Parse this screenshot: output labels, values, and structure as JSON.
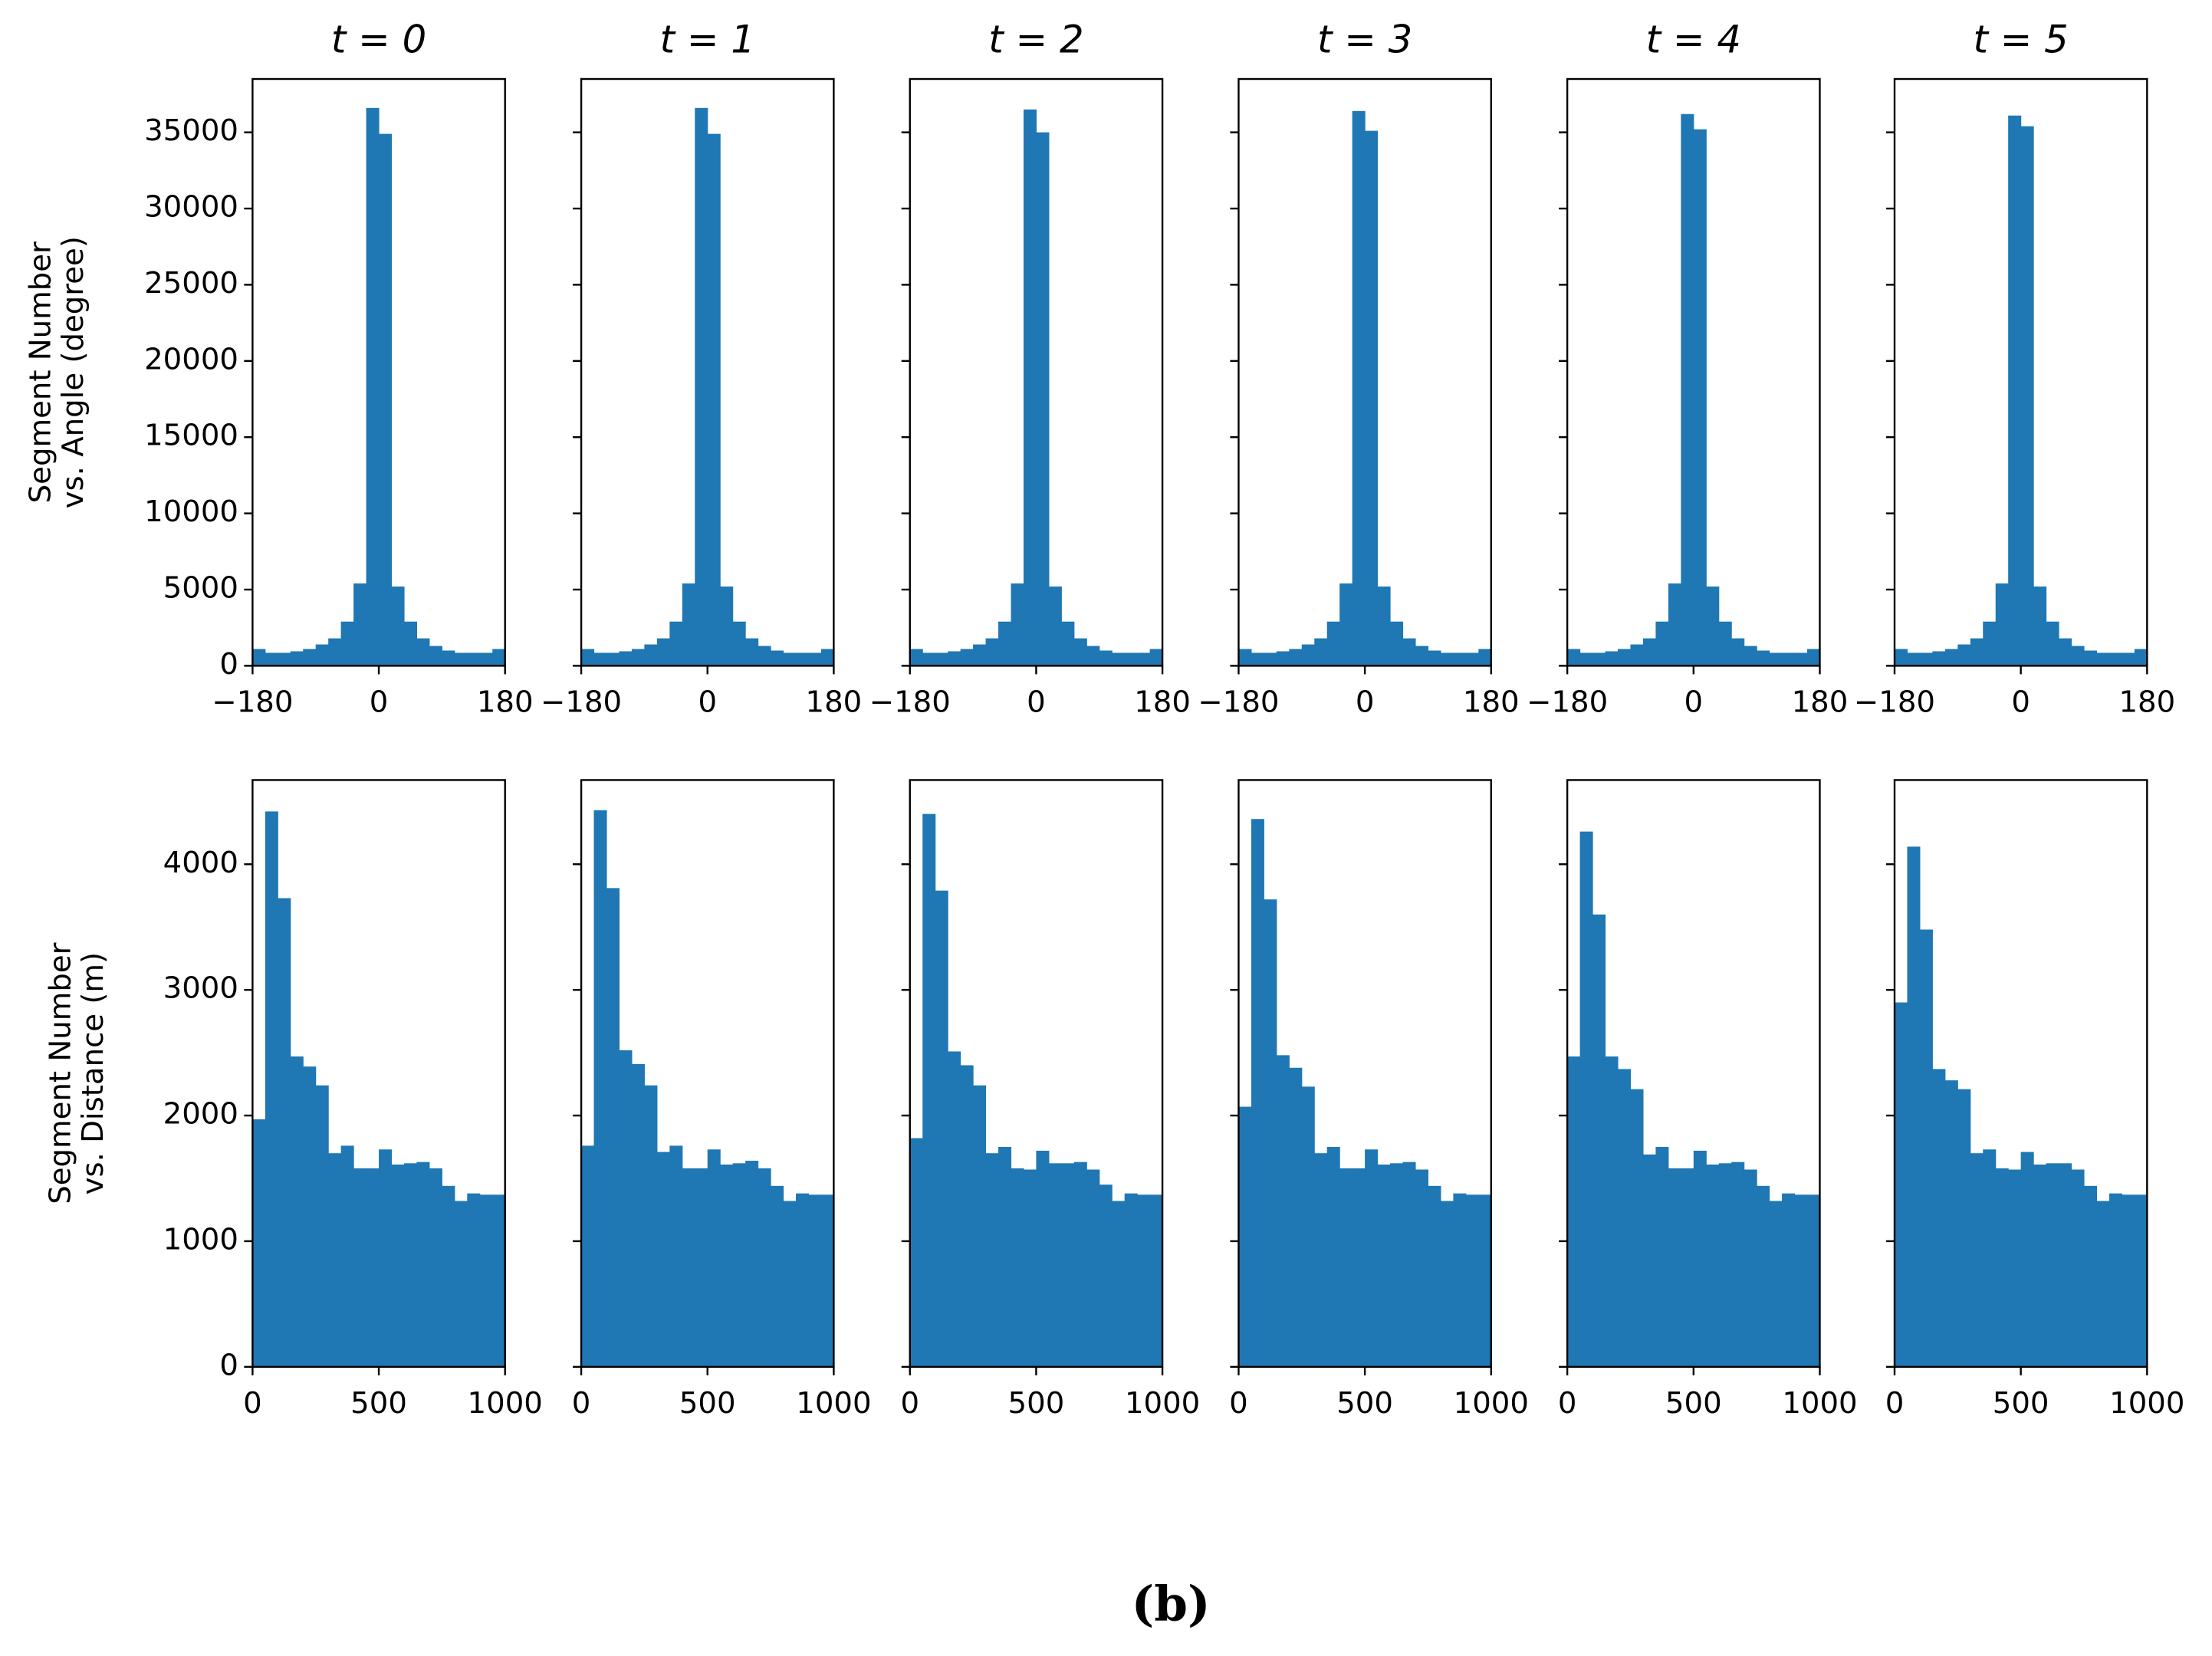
{
  "caption": "(b)",
  "chart_data": [
    {
      "type": "histogram",
      "title": "t = 0",
      "ylabel": [
        "Segment Number",
        "vs. Angle (degree)"
      ],
      "color": "#1f77b4",
      "bins": [
        -180,
        -162,
        -144,
        -126,
        -108,
        -90,
        -72,
        -54,
        -36,
        -18,
        0,
        18,
        36,
        54,
        72,
        90,
        108,
        126,
        144,
        162,
        180
      ],
      "values": [
        1100,
        850,
        850,
        950,
        1100,
        1400,
        1800,
        2900,
        5400,
        36600,
        34900,
        5200,
        2900,
        1800,
        1300,
        1000,
        850,
        850,
        850,
        1100
      ],
      "xlim": [
        -180,
        180
      ],
      "xticks": [
        {
          "value": -180,
          "label": "−180"
        },
        0,
        180
      ],
      "ylim": [
        0,
        38500
      ],
      "yticks": [
        0,
        5000,
        10000,
        15000,
        20000,
        25000,
        30000,
        35000
      ]
    },
    {
      "type": "histogram",
      "title": "t = 1",
      "color": "#1f77b4",
      "ytick_labels": false,
      "bins": [
        -180,
        -162,
        -144,
        -126,
        -108,
        -90,
        -72,
        -54,
        -36,
        -18,
        0,
        18,
        36,
        54,
        72,
        90,
        108,
        126,
        144,
        162,
        180
      ],
      "values": [
        1100,
        850,
        850,
        950,
        1100,
        1400,
        1800,
        2900,
        5400,
        36600,
        34900,
        5200,
        2900,
        1800,
        1300,
        1000,
        850,
        850,
        850,
        1100
      ],
      "xlim": [
        -180,
        180
      ],
      "xticks": [
        {
          "value": -180,
          "label": "−180"
        },
        0,
        180
      ],
      "ylim": [
        0,
        38500
      ],
      "yticks": [
        0,
        5000,
        10000,
        15000,
        20000,
        25000,
        30000,
        35000
      ]
    },
    {
      "type": "histogram",
      "title": "t = 2",
      "color": "#1f77b4",
      "ytick_labels": false,
      "bins": [
        -180,
        -162,
        -144,
        -126,
        -108,
        -90,
        -72,
        -54,
        -36,
        -18,
        0,
        18,
        36,
        54,
        72,
        90,
        108,
        126,
        144,
        162,
        180
      ],
      "values": [
        1100,
        850,
        850,
        950,
        1100,
        1400,
        1800,
        2900,
        5400,
        36500,
        35000,
        5200,
        2900,
        1800,
        1300,
        1000,
        850,
        850,
        850,
        1100
      ],
      "xlim": [
        -180,
        180
      ],
      "xticks": [
        {
          "value": -180,
          "label": "−180"
        },
        0,
        180
      ],
      "ylim": [
        0,
        38500
      ],
      "yticks": [
        0,
        5000,
        10000,
        15000,
        20000,
        25000,
        30000,
        35000
      ]
    },
    {
      "type": "histogram",
      "title": "t = 3",
      "color": "#1f77b4",
      "ytick_labels": false,
      "bins": [
        -180,
        -162,
        -144,
        -126,
        -108,
        -90,
        -72,
        -54,
        -36,
        -18,
        0,
        18,
        36,
        54,
        72,
        90,
        108,
        126,
        144,
        162,
        180
      ],
      "values": [
        1100,
        850,
        850,
        950,
        1100,
        1400,
        1800,
        2900,
        5400,
        36400,
        35100,
        5200,
        2900,
        1800,
        1300,
        1000,
        850,
        850,
        850,
        1100
      ],
      "xlim": [
        -180,
        180
      ],
      "xticks": [
        {
          "value": -180,
          "label": "−180"
        },
        0,
        180
      ],
      "ylim": [
        0,
        38500
      ],
      "yticks": [
        0,
        5000,
        10000,
        15000,
        20000,
        25000,
        30000,
        35000
      ]
    },
    {
      "type": "histogram",
      "title": "t = 4",
      "color": "#1f77b4",
      "ytick_labels": false,
      "bins": [
        -180,
        -162,
        -144,
        -126,
        -108,
        -90,
        -72,
        -54,
        -36,
        -18,
        0,
        18,
        36,
        54,
        72,
        90,
        108,
        126,
        144,
        162,
        180
      ],
      "values": [
        1100,
        850,
        850,
        950,
        1100,
        1400,
        1800,
        2900,
        5400,
        36200,
        35200,
        5200,
        2900,
        1800,
        1300,
        1000,
        850,
        850,
        850,
        1100
      ],
      "xlim": [
        -180,
        180
      ],
      "xticks": [
        {
          "value": -180,
          "label": "−180"
        },
        0,
        180
      ],
      "ylim": [
        0,
        38500
      ],
      "yticks": [
        0,
        5000,
        10000,
        15000,
        20000,
        25000,
        30000,
        35000
      ]
    },
    {
      "type": "histogram",
      "title": "t = 5",
      "color": "#1f77b4",
      "ytick_labels": false,
      "bins": [
        -180,
        -162,
        -144,
        -126,
        -108,
        -90,
        -72,
        -54,
        -36,
        -18,
        0,
        18,
        36,
        54,
        72,
        90,
        108,
        126,
        144,
        162,
        180
      ],
      "values": [
        1100,
        850,
        850,
        950,
        1100,
        1400,
        1800,
        2900,
        5400,
        36100,
        35400,
        5200,
        2900,
        1800,
        1300,
        1000,
        850,
        850,
        850,
        1100
      ],
      "xlim": [
        -180,
        180
      ],
      "xticks": [
        {
          "value": -180,
          "label": "−180"
        },
        0,
        180
      ],
      "ylim": [
        0,
        38500
      ],
      "yticks": [
        0,
        5000,
        10000,
        15000,
        20000,
        25000,
        30000,
        35000
      ]
    },
    {
      "type": "histogram",
      "ylabel": [
        "Segment Number",
        "vs. Distance (m)"
      ],
      "color": "#1f77b4",
      "bins": [
        0,
        50,
        100,
        150,
        200,
        250,
        300,
        350,
        400,
        450,
        500,
        550,
        600,
        650,
        700,
        750,
        800,
        850,
        900,
        950,
        1000
      ],
      "values": [
        1970,
        4420,
        3730,
        2470,
        2390,
        2240,
        1700,
        1760,
        1580,
        1580,
        1730,
        1610,
        1620,
        1630,
        1580,
        1440,
        1320,
        1380,
        1370,
        1370
      ],
      "xlim": [
        0,
        1000
      ],
      "xticks": [
        0,
        500,
        1000
      ],
      "ylim": [
        0,
        4670
      ],
      "yticks": [
        0,
        1000,
        2000,
        3000,
        4000
      ]
    },
    {
      "type": "histogram",
      "color": "#1f77b4",
      "ytick_labels": false,
      "bins": [
        0,
        50,
        100,
        150,
        200,
        250,
        300,
        350,
        400,
        450,
        500,
        550,
        600,
        650,
        700,
        750,
        800,
        850,
        900,
        950,
        1000
      ],
      "values": [
        1760,
        4430,
        3810,
        2520,
        2410,
        2240,
        1710,
        1760,
        1580,
        1580,
        1730,
        1610,
        1620,
        1640,
        1580,
        1440,
        1320,
        1380,
        1370,
        1370
      ],
      "xlim": [
        0,
        1000
      ],
      "xticks": [
        0,
        500,
        1000
      ],
      "ylim": [
        0,
        4670
      ],
      "yticks": [
        0,
        1000,
        2000,
        3000,
        4000
      ]
    },
    {
      "type": "histogram",
      "color": "#1f77b4",
      "ytick_labels": false,
      "bins": [
        0,
        50,
        100,
        150,
        200,
        250,
        300,
        350,
        400,
        450,
        500,
        550,
        600,
        650,
        700,
        750,
        800,
        850,
        900,
        950,
        1000
      ],
      "values": [
        1820,
        4400,
        3790,
        2510,
        2400,
        2240,
        1700,
        1750,
        1580,
        1570,
        1720,
        1620,
        1620,
        1630,
        1570,
        1450,
        1320,
        1380,
        1370,
        1370
      ],
      "xlim": [
        0,
        1000
      ],
      "xticks": [
        0,
        500,
        1000
      ],
      "ylim": [
        0,
        4670
      ],
      "yticks": [
        0,
        1000,
        2000,
        3000,
        4000
      ]
    },
    {
      "type": "histogram",
      "color": "#1f77b4",
      "ytick_labels": false,
      "bins": [
        0,
        50,
        100,
        150,
        200,
        250,
        300,
        350,
        400,
        450,
        500,
        550,
        600,
        650,
        700,
        750,
        800,
        850,
        900,
        950,
        1000
      ],
      "values": [
        2070,
        4360,
        3720,
        2480,
        2380,
        2230,
        1700,
        1750,
        1580,
        1580,
        1730,
        1610,
        1620,
        1630,
        1570,
        1440,
        1320,
        1380,
        1370,
        1370
      ],
      "xlim": [
        0,
        1000
      ],
      "xticks": [
        0,
        500,
        1000
      ],
      "ylim": [
        0,
        4670
      ],
      "yticks": [
        0,
        1000,
        2000,
        3000,
        4000
      ]
    },
    {
      "type": "histogram",
      "color": "#1f77b4",
      "ytick_labels": false,
      "bins": [
        0,
        50,
        100,
        150,
        200,
        250,
        300,
        350,
        400,
        450,
        500,
        550,
        600,
        650,
        700,
        750,
        800,
        850,
        900,
        950,
        1000
      ],
      "values": [
        2470,
        4260,
        3600,
        2470,
        2370,
        2210,
        1690,
        1750,
        1580,
        1580,
        1720,
        1610,
        1620,
        1630,
        1570,
        1440,
        1320,
        1380,
        1370,
        1370
      ],
      "xlim": [
        0,
        1000
      ],
      "xticks": [
        0,
        500,
        1000
      ],
      "ylim": [
        0,
        4670
      ],
      "yticks": [
        0,
        1000,
        2000,
        3000,
        4000
      ]
    },
    {
      "type": "histogram",
      "color": "#1f77b4",
      "ytick_labels": false,
      "bins": [
        0,
        50,
        100,
        150,
        200,
        250,
        300,
        350,
        400,
        450,
        500,
        550,
        600,
        650,
        700,
        750,
        800,
        850,
        900,
        950,
        1000
      ],
      "values": [
        2900,
        4140,
        3480,
        2370,
        2280,
        2210,
        1700,
        1730,
        1580,
        1570,
        1710,
        1610,
        1620,
        1620,
        1570,
        1440,
        1320,
        1380,
        1370,
        1370
      ],
      "xlim": [
        0,
        1000
      ],
      "xticks": [
        0,
        500,
        1000
      ],
      "ylim": [
        0,
        4670
      ],
      "yticks": [
        0,
        1000,
        2000,
        3000,
        4000
      ]
    }
  ]
}
